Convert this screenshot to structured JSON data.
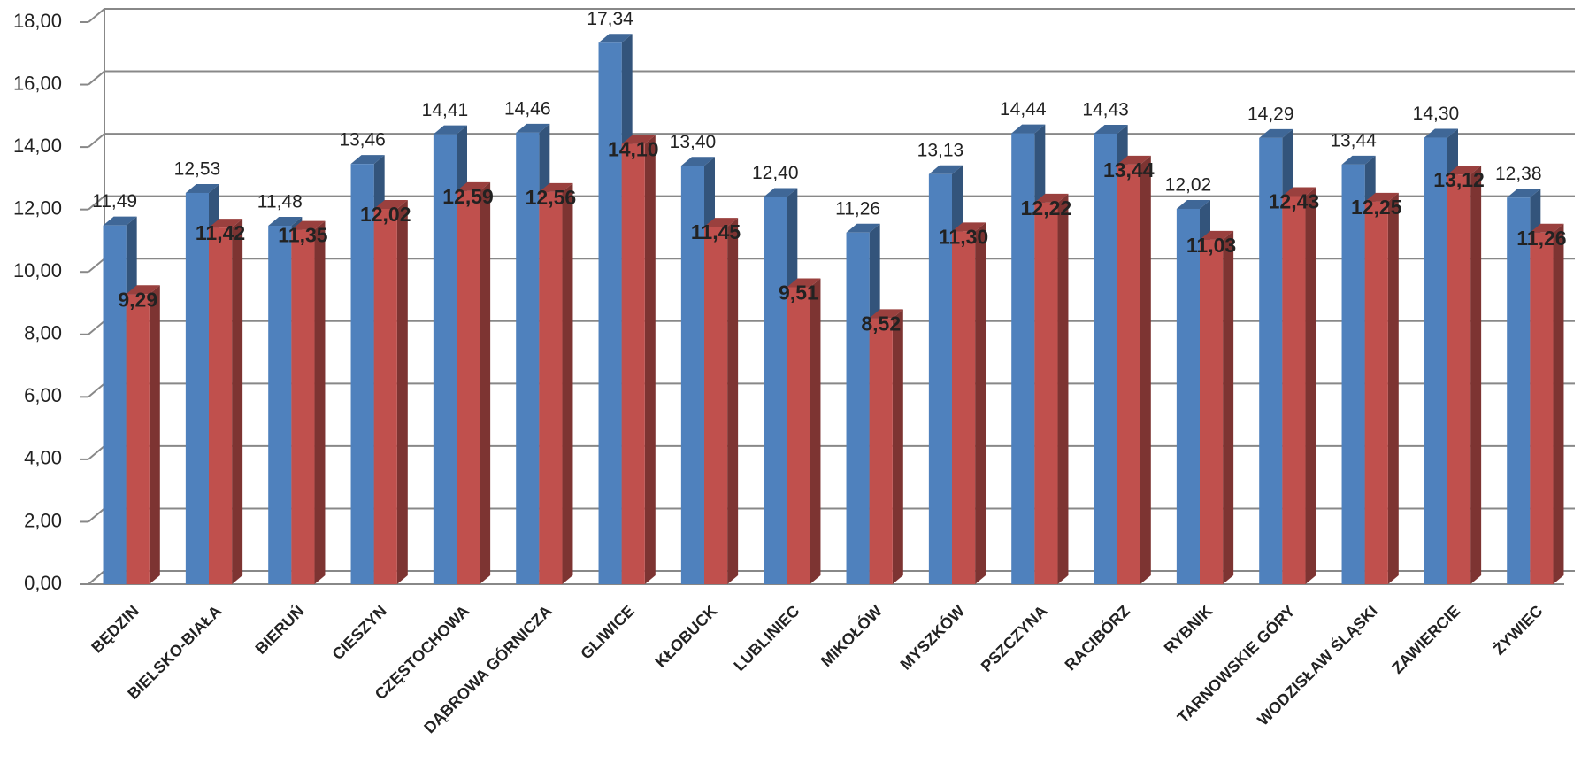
{
  "chart_data": {
    "type": "bar3d",
    "categories": [
      "BĘDZIN",
      "BIELSKO-BIAŁA",
      "BIERUŃ",
      "CIESZYN",
      "CZĘSTOCHOWA",
      "DĄBROWA GÓRNICZA",
      "GLIWICE",
      "KŁOBUCK",
      "LUBLINIEC",
      "MIKOŁÓW",
      "MYSZKÓW",
      "PSZCZYNA",
      "RACIBÓRZ",
      "RYBNIK",
      "TARNOWSKIE GÓRY",
      "WODZISŁAW ŚLĄSKI",
      "ZAWIERCIE",
      "ŻYWIEC"
    ],
    "series": [
      {
        "color": "#4f81bd",
        "values": [
          11.49,
          12.53,
          11.48,
          13.46,
          14.41,
          14.46,
          17.34,
          13.4,
          12.4,
          11.26,
          13.13,
          14.44,
          14.43,
          12.02,
          14.29,
          13.44,
          14.3,
          12.38
        ],
        "value_labels": [
          "11,49",
          "12,53",
          "11,48",
          "13,46",
          "14,41",
          "14,46",
          "17,34",
          "13,40",
          "12,40",
          "11,26",
          "13,13",
          "14,44",
          "14,43",
          "12,02",
          "14,29",
          "13,44",
          "14,30",
          "12,38"
        ]
      },
      {
        "color": "#c0504d",
        "values": [
          9.29,
          11.42,
          11.35,
          12.02,
          12.59,
          12.56,
          14.1,
          11.45,
          9.51,
          8.52,
          11.3,
          12.22,
          13.44,
          11.03,
          12.43,
          12.25,
          13.12,
          11.26
        ],
        "value_labels": [
          "9,29",
          "11,42",
          "11,35",
          "12,02",
          "12,59",
          "12,56",
          "14,10",
          "11,45",
          "9,51",
          "8,52",
          "11,30",
          "12,22",
          "13,44",
          "11,03",
          "12,43",
          "12,25",
          "13,12",
          "11,26"
        ]
      }
    ],
    "ylim": [
      0,
      18
    ],
    "yticks": [
      {
        "value": 0,
        "label": "0,00"
      },
      {
        "value": 2,
        "label": "2,00"
      },
      {
        "value": 4,
        "label": "4,00"
      },
      {
        "value": 6,
        "label": "6,00"
      },
      {
        "value": 8,
        "label": "8,00"
      },
      {
        "value": 10,
        "label": "10,00"
      },
      {
        "value": 12,
        "label": "12,00"
      },
      {
        "value": 14,
        "label": "14,00"
      },
      {
        "value": 16,
        "label": "16,00"
      },
      {
        "value": 18,
        "label": "18,00"
      }
    ],
    "grid": true
  }
}
